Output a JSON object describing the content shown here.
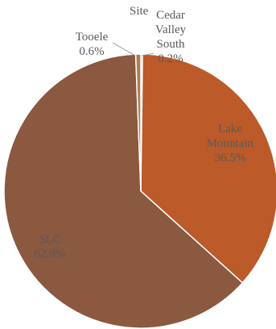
{
  "chart_data": {
    "type": "pie",
    "title": "",
    "slices": [
      {
        "label": [
          "Cedar",
          "Valley",
          "South"
        ],
        "percent_label": "0.2%",
        "value": 0.2,
        "color": "#b0793e"
      },
      {
        "label": [
          "Lake",
          "Mountain"
        ],
        "percent_label": "36.5%",
        "value": 36.5,
        "color": "#bc5a2a"
      },
      {
        "label": [
          "SLC"
        ],
        "percent_label": "62.8%",
        "value": 62.8,
        "color": "#8b5840"
      },
      {
        "label": [
          "Tooele"
        ],
        "percent_label": "0.6%",
        "value": 0.6,
        "color": "#a87f52"
      }
    ],
    "legend": "none"
  },
  "header_fragment": "Site"
}
